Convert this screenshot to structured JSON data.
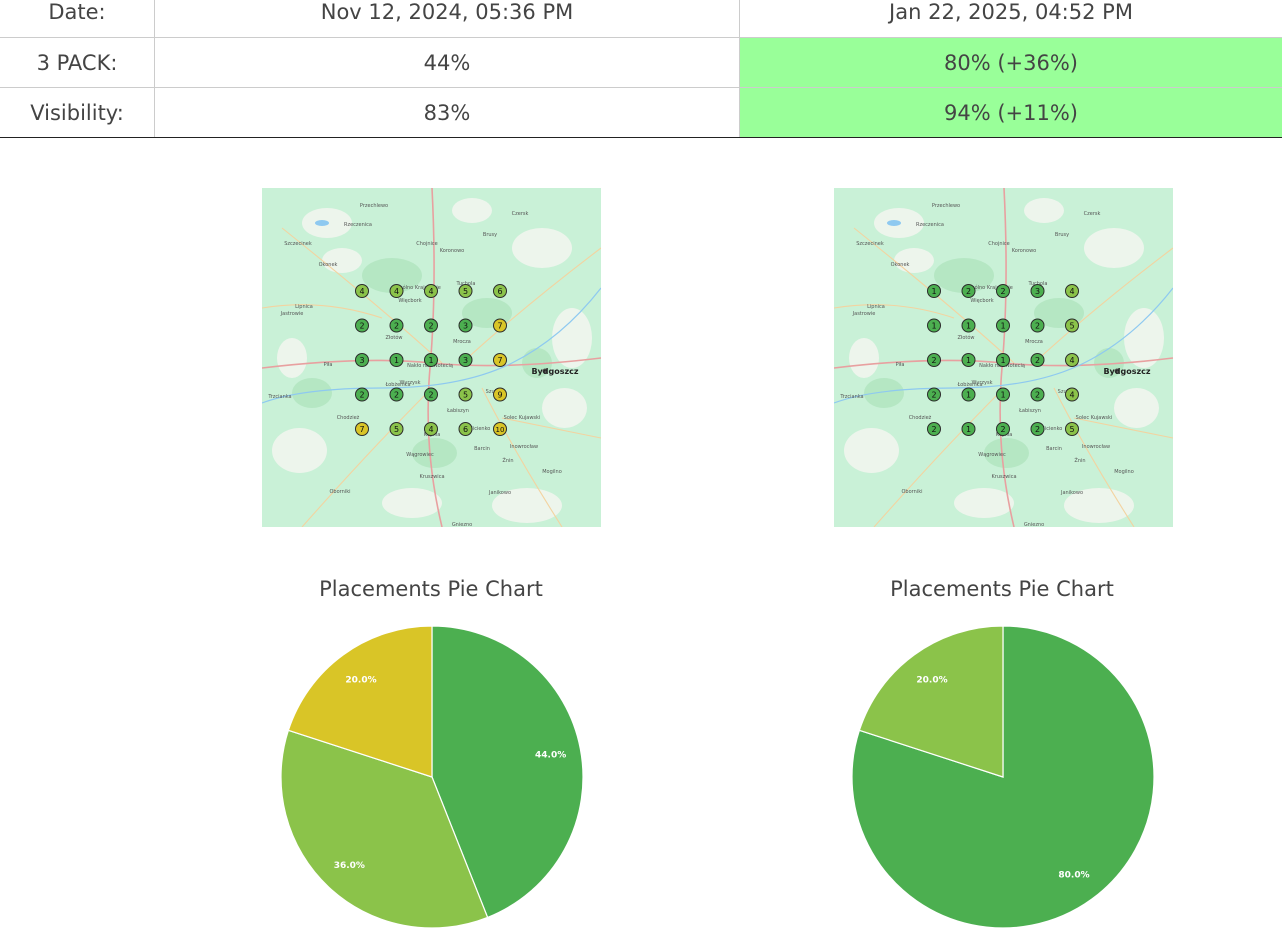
{
  "table": {
    "rows": [
      {
        "label": "Date:",
        "before": "Nov 12, 2024, 05:36 PM",
        "after": "Jan 22, 2025, 04:52 PM",
        "after_highlight": false
      },
      {
        "label": "3 PACK:",
        "before": "44%",
        "after": "80% (+36%)",
        "after_highlight": true
      },
      {
        "label": "Visibility:",
        "before": "83%",
        "after": "94% (+11%)",
        "after_highlight": true
      }
    ]
  },
  "colors": {
    "rank_green": "#4caf50",
    "rank_lightgreen": "#8bc34a",
    "rank_yellow": "#d9c527",
    "highlight": "#99ff99",
    "map_bg": "#c9f1d7"
  },
  "maps": [
    {
      "city": "Bydgoszcz",
      "grid": [
        [
          4,
          4,
          4,
          5,
          6
        ],
        [
          2,
          2,
          2,
          3,
          7
        ],
        [
          3,
          1,
          1,
          3,
          7
        ],
        [
          2,
          2,
          2,
          5,
          9
        ],
        [
          7,
          5,
          4,
          6,
          10
        ]
      ]
    },
    {
      "city": "Bydgoszcz",
      "grid": [
        [
          1,
          2,
          2,
          3,
          4
        ],
        [
          1,
          1,
          1,
          2,
          5
        ],
        [
          2,
          1,
          1,
          2,
          4
        ],
        [
          2,
          1,
          1,
          2,
          4
        ],
        [
          2,
          1,
          2,
          2,
          5
        ]
      ]
    }
  ],
  "map_labels": [
    "Przechlewo",
    "Rzeczenica",
    "Czersk",
    "Szczecinek",
    "Chojnice",
    "Brusy",
    "Lipnica",
    "Sępólno Krajeńskie",
    "Więcbork",
    "Tuchola",
    "Złotów",
    "Nakło nad Notecią",
    "Wyrzysk",
    "Szubin",
    "Łabiszyn",
    "Solec Kujawski",
    "Inowrocław",
    "Gniezno",
    "Wągrowiec",
    "Chodzież",
    "Piła",
    "Trzcianka",
    "Oborniki",
    "Kcynia",
    "Żnin",
    "Jastrowie",
    "Okonek",
    "Koronowo",
    "Łobżenica",
    "Mrocza",
    "Sicienko",
    "Barcin",
    "Janikowo",
    "Mogilno",
    "Kruszwica"
  ],
  "pies": [
    {
      "title": "Placements Pie Chart",
      "chart_data": {
        "type": "pie",
        "slices": [
          {
            "value": 44.0,
            "label": "44.0%",
            "color": "#4caf50"
          },
          {
            "value": 36.0,
            "label": "36.0%",
            "color": "#8bc34a"
          },
          {
            "value": 20.0,
            "label": "20.0%",
            "color": "#d9c527"
          }
        ]
      }
    },
    {
      "title": "Placements Pie Chart",
      "chart_data": {
        "type": "pie",
        "slices": [
          {
            "value": 80.0,
            "label": "80.0%",
            "color": "#4caf50"
          },
          {
            "value": 20.0,
            "label": "20.0%",
            "color": "#8bc34a"
          }
        ]
      }
    }
  ]
}
